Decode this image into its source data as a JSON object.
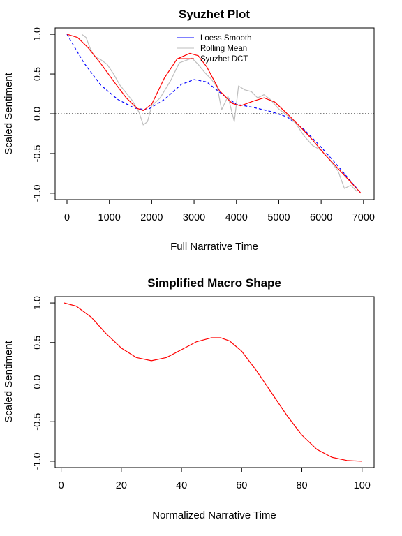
{
  "chart_data": [
    {
      "type": "line",
      "title": "Syuzhet Plot",
      "xlabel": "Full Narrative Time",
      "ylabel": "Scaled Sentiment",
      "xlim": [
        -280,
        7250
      ],
      "ylim": [
        -1.08,
        1.08
      ],
      "xticks": [
        0,
        1000,
        2000,
        3000,
        4000,
        5000,
        6000,
        7000
      ],
      "yticks": [
        -1.0,
        -0.5,
        0.0,
        0.5,
        1.0
      ],
      "reference_line": {
        "y": 0.0,
        "style": "dotted"
      },
      "legend": {
        "position": "top-center"
      },
      "series": [
        {
          "name": "Loess Smooth",
          "color": "#0000ff",
          "style": "dashed",
          "x": [
            0,
            400,
            800,
            1200,
            1600,
            1900,
            2300,
            2700,
            3000,
            3300,
            3700,
            4000,
            4400,
            4800,
            5200,
            5600,
            6000,
            6400,
            6940
          ],
          "y": [
            1.0,
            0.64,
            0.36,
            0.18,
            0.07,
            0.05,
            0.18,
            0.37,
            0.43,
            0.4,
            0.23,
            0.12,
            0.08,
            0.03,
            -0.04,
            -0.2,
            -0.42,
            -0.66,
            -1.0
          ]
        },
        {
          "name": "Rolling Mean",
          "color": "#bebebe",
          "style": "solid",
          "x": [
            350,
            450,
            550,
            650,
            800,
            950,
            1100,
            1250,
            1400,
            1550,
            1700,
            1800,
            1900,
            2000,
            2200,
            2450,
            2650,
            2800,
            2950,
            3100,
            3250,
            3400,
            3550,
            3650,
            3800,
            3950,
            4050,
            4200,
            4350,
            4500,
            4650,
            4800,
            5000,
            5200,
            5400,
            5600,
            5800,
            6000,
            6200,
            6400,
            6550,
            6700,
            6850
          ],
          "y": [
            1.0,
            0.96,
            0.82,
            0.72,
            0.68,
            0.62,
            0.5,
            0.36,
            0.26,
            0.16,
            0.02,
            -0.14,
            -0.1,
            0.1,
            0.2,
            0.42,
            0.64,
            0.67,
            0.7,
            0.62,
            0.52,
            0.44,
            0.33,
            0.05,
            0.22,
            -0.1,
            0.35,
            0.3,
            0.28,
            0.2,
            0.24,
            0.18,
            0.06,
            -0.02,
            -0.12,
            -0.28,
            -0.4,
            -0.46,
            -0.58,
            -0.72,
            -0.94,
            -0.9,
            -0.98
          ]
        },
        {
          "name": "Syuzhet DCT",
          "color": "#ff0000",
          "style": "solid",
          "x": [
            0,
            250,
            500,
            800,
            1100,
            1400,
            1650,
            1800,
            2000,
            2300,
            2600,
            2900,
            3100,
            3300,
            3600,
            3900,
            4100,
            4400,
            4650,
            4900,
            5200,
            5500,
            5800,
            6100,
            6400,
            6700,
            6940
          ],
          "y": [
            1.0,
            0.96,
            0.83,
            0.63,
            0.41,
            0.2,
            0.07,
            0.04,
            0.12,
            0.45,
            0.69,
            0.76,
            0.73,
            0.59,
            0.29,
            0.13,
            0.1,
            0.16,
            0.2,
            0.15,
            0.0,
            -0.16,
            -0.33,
            -0.52,
            -0.69,
            -0.86,
            -1.0
          ]
        }
      ]
    },
    {
      "type": "line",
      "title": "Simplified Macro Shape",
      "xlabel": "Normalized Narrative Time",
      "ylabel": "Scaled Sentiment",
      "xlim": [
        -2,
        104
      ],
      "ylim": [
        -1.08,
        1.08
      ],
      "xticks": [
        0,
        20,
        40,
        60,
        80,
        100
      ],
      "yticks": [
        -1.0,
        -0.5,
        0.0,
        0.5,
        1.0
      ],
      "series": [
        {
          "color": "#ff0000",
          "style": "solid",
          "x": [
            1,
            5,
            10,
            15,
            20,
            25,
            30,
            35,
            40,
            45,
            50,
            53,
            56,
            60,
            65,
            70,
            75,
            80,
            85,
            90,
            95,
            100
          ],
          "y": [
            1.0,
            0.96,
            0.82,
            0.61,
            0.43,
            0.31,
            0.27,
            0.31,
            0.41,
            0.51,
            0.56,
            0.56,
            0.52,
            0.39,
            0.14,
            -0.14,
            -0.42,
            -0.67,
            -0.85,
            -0.95,
            -0.99,
            -1.0
          ]
        }
      ]
    }
  ]
}
